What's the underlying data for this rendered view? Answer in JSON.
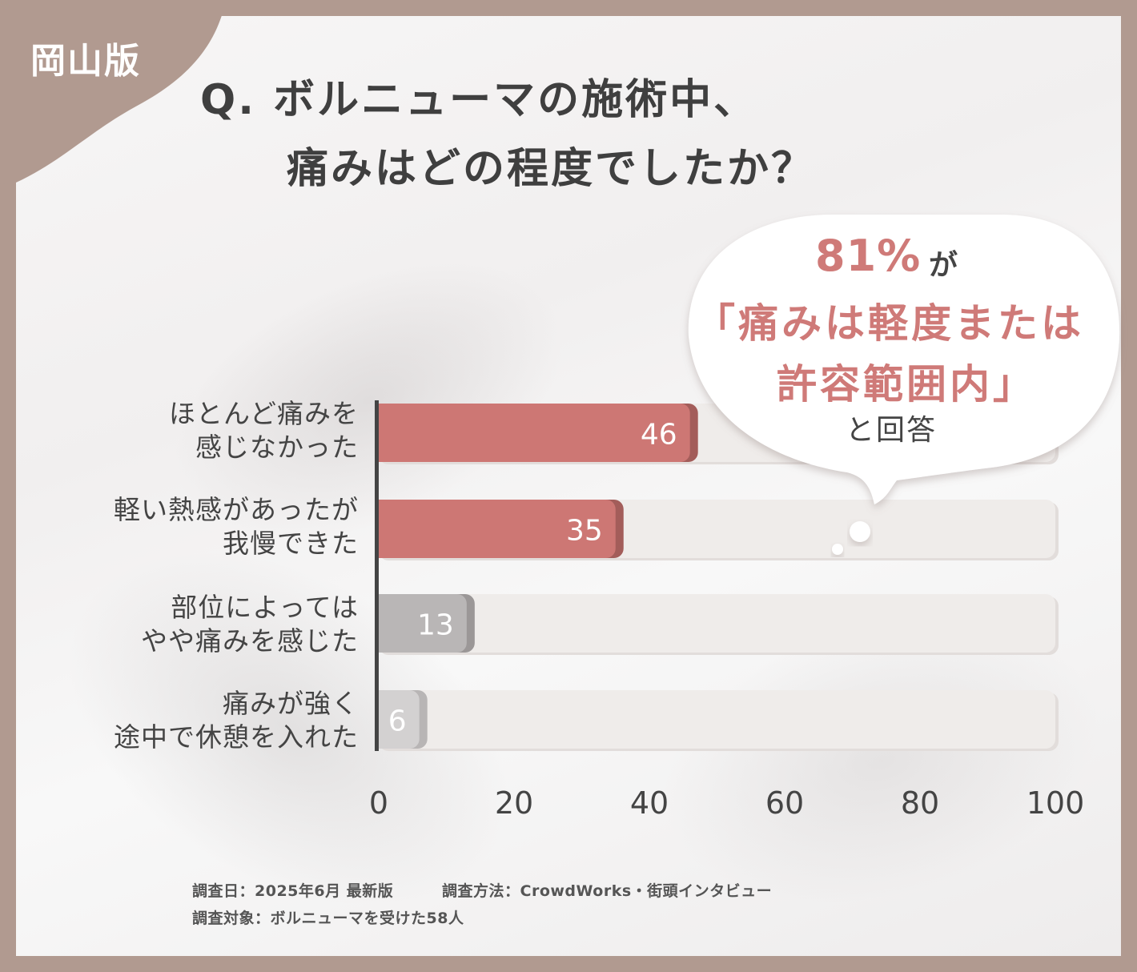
{
  "badge": {
    "region": "岡山版"
  },
  "question": {
    "line1": "Q. ボルニューマの施術中、",
    "line2": "痛みはどの程度でしたか？"
  },
  "callout": {
    "percent": "81%",
    "particle": "が",
    "quote_line1": "「痛みは軽度または",
    "quote_line2": "許容範囲内」",
    "answer": "と回答"
  },
  "chart_data": {
    "type": "bar",
    "orientation": "horizontal",
    "categories": [
      [
        "ほとんど痛みを",
        "感じなかった"
      ],
      [
        "軽い熱感があったが",
        "我慢できた"
      ],
      [
        "部位によっては",
        "やや痛みを感じた"
      ],
      [
        "痛みが強く",
        "途中で休憩を入れた"
      ]
    ],
    "values": [
      46,
      35,
      13,
      6
    ],
    "bar_colors": [
      "#cd7774",
      "#cd7774",
      "#b9b6b6",
      "#d3d1d1"
    ],
    "track_color": "#efecea",
    "xlim": [
      0,
      100
    ],
    "xticks": [
      "0",
      "20",
      "40",
      "60",
      "80",
      "100"
    ],
    "grid": false
  },
  "footer": {
    "date": "調査日：2025年6月 最新版",
    "method": "調査方法：CrowdWorks・街頭インタビュー",
    "target": "調査対象：ボルニューマを受けた58人"
  },
  "colors": {
    "frame": "#b19a90",
    "accent": "#cf7a78",
    "text": "#3f3f3f"
  }
}
